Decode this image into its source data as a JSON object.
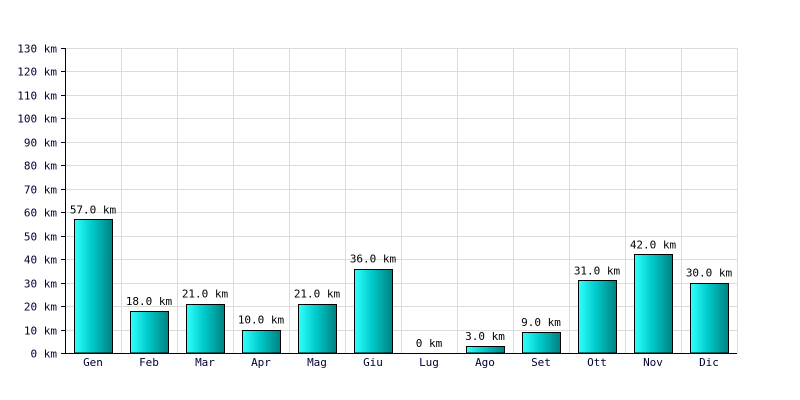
{
  "chart_data": {
    "type": "bar",
    "categories": [
      "Gen",
      "Feb",
      "Mar",
      "Apr",
      "Mag",
      "Giu",
      "Lug",
      "Ago",
      "Set",
      "Ott",
      "Nov",
      "Dic"
    ],
    "values": [
      57.0,
      18.0,
      21.0,
      10.0,
      21.0,
      36.0,
      0,
      3.0,
      9.0,
      31.0,
      42.0,
      30.0
    ],
    "data_labels": [
      "57.0 km",
      "18.0 km",
      "21.0 km",
      "10.0 km",
      "21.0 km",
      "36.0 km",
      "0 km",
      "3.0 km",
      "9.0 km",
      "31.0 km",
      "42.0 km",
      "30.0 km"
    ],
    "y_ticks": [
      0,
      10,
      20,
      30,
      40,
      50,
      60,
      70,
      80,
      90,
      100,
      110,
      120,
      130
    ],
    "y_tick_labels": [
      "0 km",
      "10 km",
      "20 km",
      "30 km",
      "40 km",
      "50 km",
      "60 km",
      "70 km",
      "80 km",
      "90 km",
      "100 km",
      "110 km",
      "120 km",
      "130 km"
    ],
    "ylim": [
      0,
      130
    ],
    "title": "",
    "xlabel": "",
    "ylabel": "",
    "grid": true,
    "legend": "none",
    "colors": {
      "bar_light": "#33ffff",
      "bar_mid": "#00cccc",
      "bar_dark": "#008080",
      "bar_edge": "#000000",
      "grid": "#dcdcdc",
      "axis": "#000033",
      "text": "#000033"
    }
  }
}
